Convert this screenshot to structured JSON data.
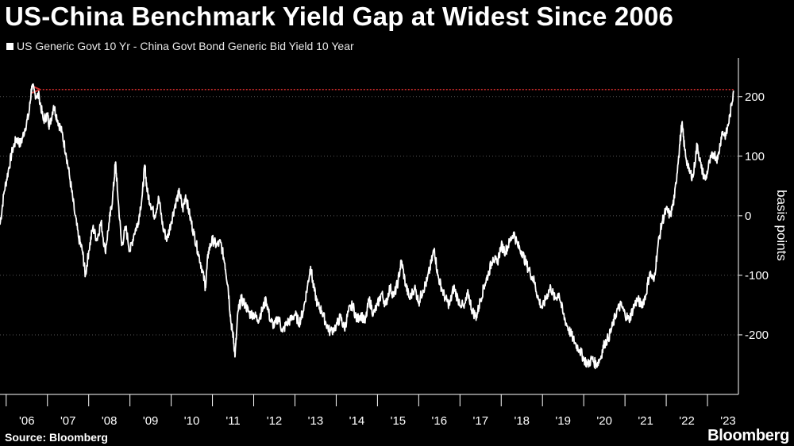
{
  "title": "US-China Benchmark Yield Gap at Widest Since 2006",
  "source": "Source: Bloomberg",
  "brand": "Bloomberg",
  "colors": {
    "background": "#000000",
    "series": "#ffffff",
    "reference_arrow": "#cc2a2a",
    "grid": "#555555"
  },
  "chart_data": {
    "type": "line",
    "title": "US-China Benchmark Yield Gap at Widest Since 2006",
    "xlabel": "",
    "ylabel": "basis points",
    "x_range": [
      2005.85,
      2023.75
    ],
    "ylim": [
      -300,
      265
    ],
    "y_ticks": [
      200,
      100,
      0,
      -100,
      -200
    ],
    "y_tick_labels": [
      "200",
      "100",
      "0",
      "-100",
      "-200"
    ],
    "x_ticks": [
      2006.5,
      2007.5,
      2008.5,
      2009.5,
      2010.5,
      2011.5,
      2012.5,
      2013.5,
      2014.5,
      2015.5,
      2016.5,
      2017.5,
      2018.5,
      2019.5,
      2020.5,
      2021.5,
      2022.5,
      2023.5
    ],
    "x_tick_labels": [
      "'06",
      "'07",
      "'08",
      "'09",
      "'10",
      "'11",
      "'12",
      "'13",
      "'14",
      "'15",
      "'16",
      "'17",
      "'18",
      "'19",
      "'20",
      "'21",
      "'22",
      "'23"
    ],
    "grid": "horizontal, dotted",
    "legend_position": "top-left",
    "series": [
      {
        "name": "US Generic Govt 10 Yr - China Govt Bond Generic Bid Yield 10 Year",
        "points": [
          [
            2005.85,
            -15
          ],
          [
            2005.95,
            40
          ],
          [
            2006.05,
            75
          ],
          [
            2006.15,
            110
          ],
          [
            2006.25,
            130
          ],
          [
            2006.35,
            120
          ],
          [
            2006.45,
            145
          ],
          [
            2006.55,
            170
          ],
          [
            2006.62,
            218
          ],
          [
            2006.7,
            205
          ],
          [
            2006.8,
            200
          ],
          [
            2006.9,
            160
          ],
          [
            2007.0,
            170
          ],
          [
            2007.05,
            150
          ],
          [
            2007.15,
            185
          ],
          [
            2007.25,
            160
          ],
          [
            2007.35,
            140
          ],
          [
            2007.45,
            105
          ],
          [
            2007.55,
            60
          ],
          [
            2007.65,
            10
          ],
          [
            2007.75,
            -35
          ],
          [
            2007.85,
            -60
          ],
          [
            2007.92,
            -100
          ],
          [
            2008.0,
            -60
          ],
          [
            2008.1,
            -20
          ],
          [
            2008.2,
            -40
          ],
          [
            2008.3,
            -10
          ],
          [
            2008.4,
            -60
          ],
          [
            2008.5,
            -10
          ],
          [
            2008.58,
            30
          ],
          [
            2008.65,
            90
          ],
          [
            2008.7,
            40
          ],
          [
            2008.8,
            -50
          ],
          [
            2008.9,
            -20
          ],
          [
            2009.0,
            -60
          ],
          [
            2009.1,
            -30
          ],
          [
            2009.2,
            -10
          ],
          [
            2009.3,
            35
          ],
          [
            2009.36,
            85
          ],
          [
            2009.42,
            40
          ],
          [
            2009.5,
            20
          ],
          [
            2009.6,
            0
          ],
          [
            2009.7,
            30
          ],
          [
            2009.8,
            -20
          ],
          [
            2009.9,
            -40
          ],
          [
            2010.0,
            -10
          ],
          [
            2010.1,
            20
          ],
          [
            2010.2,
            40
          ],
          [
            2010.28,
            10
          ],
          [
            2010.35,
            35
          ],
          [
            2010.45,
            0
          ],
          [
            2010.55,
            -30
          ],
          [
            2010.65,
            -60
          ],
          [
            2010.75,
            -90
          ],
          [
            2010.83,
            -120
          ],
          [
            2010.9,
            -60
          ],
          [
            2011.0,
            -40
          ],
          [
            2011.1,
            -50
          ],
          [
            2011.2,
            -45
          ],
          [
            2011.3,
            -80
          ],
          [
            2011.38,
            -120
          ],
          [
            2011.45,
            -180
          ],
          [
            2011.5,
            -200
          ],
          [
            2011.55,
            -235
          ],
          [
            2011.62,
            -160
          ],
          [
            2011.7,
            -140
          ],
          [
            2011.8,
            -150
          ],
          [
            2011.9,
            -165
          ],
          [
            2012.0,
            -165
          ],
          [
            2012.1,
            -175
          ],
          [
            2012.2,
            -160
          ],
          [
            2012.3,
            -140
          ],
          [
            2012.4,
            -175
          ],
          [
            2012.5,
            -185
          ],
          [
            2012.6,
            -170
          ],
          [
            2012.7,
            -195
          ],
          [
            2012.8,
            -180
          ],
          [
            2012.9,
            -175
          ],
          [
            2013.0,
            -165
          ],
          [
            2013.1,
            -180
          ],
          [
            2013.2,
            -160
          ],
          [
            2013.3,
            -120
          ],
          [
            2013.38,
            -85
          ],
          [
            2013.45,
            -120
          ],
          [
            2013.55,
            -150
          ],
          [
            2013.65,
            -160
          ],
          [
            2013.75,
            -180
          ],
          [
            2013.85,
            -195
          ],
          [
            2014.0,
            -185
          ],
          [
            2014.1,
            -170
          ],
          [
            2014.2,
            -190
          ],
          [
            2014.3,
            -160
          ],
          [
            2014.4,
            -150
          ],
          [
            2014.5,
            -175
          ],
          [
            2014.6,
            -165
          ],
          [
            2014.7,
            -180
          ],
          [
            2014.8,
            -140
          ],
          [
            2014.9,
            -165
          ],
          [
            2015.0,
            -150
          ],
          [
            2015.1,
            -130
          ],
          [
            2015.2,
            -150
          ],
          [
            2015.3,
            -120
          ],
          [
            2015.4,
            -135
          ],
          [
            2015.5,
            -110
          ],
          [
            2015.58,
            -75
          ],
          [
            2015.68,
            -115
          ],
          [
            2015.78,
            -140
          ],
          [
            2015.9,
            -120
          ],
          [
            2016.0,
            -145
          ],
          [
            2016.1,
            -125
          ],
          [
            2016.2,
            -110
          ],
          [
            2016.3,
            -80
          ],
          [
            2016.38,
            -55
          ],
          [
            2016.46,
            -100
          ],
          [
            2016.55,
            -120
          ],
          [
            2016.65,
            -140
          ],
          [
            2016.75,
            -150
          ],
          [
            2016.85,
            -120
          ],
          [
            2016.95,
            -140
          ],
          [
            2017.1,
            -155
          ],
          [
            2017.2,
            -130
          ],
          [
            2017.3,
            -160
          ],
          [
            2017.4,
            -170
          ],
          [
            2017.5,
            -140
          ],
          [
            2017.6,
            -115
          ],
          [
            2017.7,
            -95
          ],
          [
            2017.8,
            -70
          ],
          [
            2017.9,
            -80
          ],
          [
            2018.0,
            -50
          ],
          [
            2018.1,
            -60
          ],
          [
            2018.2,
            -45
          ],
          [
            2018.3,
            -28
          ],
          [
            2018.4,
            -50
          ],
          [
            2018.5,
            -60
          ],
          [
            2018.6,
            -80
          ],
          [
            2018.7,
            -95
          ],
          [
            2018.8,
            -110
          ],
          [
            2018.9,
            -140
          ],
          [
            2019.0,
            -155
          ],
          [
            2019.1,
            -135
          ],
          [
            2019.2,
            -120
          ],
          [
            2019.3,
            -140
          ],
          [
            2019.4,
            -130
          ],
          [
            2019.5,
            -165
          ],
          [
            2019.6,
            -185
          ],
          [
            2019.7,
            -200
          ],
          [
            2019.8,
            -215
          ],
          [
            2019.9,
            -225
          ],
          [
            2020.0,
            -240
          ],
          [
            2020.1,
            -250
          ],
          [
            2020.2,
            -240
          ],
          [
            2020.3,
            -250
          ],
          [
            2020.4,
            -240
          ],
          [
            2020.5,
            -215
          ],
          [
            2020.6,
            -205
          ],
          [
            2020.7,
            -185
          ],
          [
            2020.8,
            -160
          ],
          [
            2020.9,
            -150
          ],
          [
            2021.0,
            -165
          ],
          [
            2021.1,
            -175
          ],
          [
            2021.2,
            -155
          ],
          [
            2021.3,
            -140
          ],
          [
            2021.4,
            -150
          ],
          [
            2021.5,
            -135
          ],
          [
            2021.6,
            -95
          ],
          [
            2021.7,
            -110
          ],
          [
            2021.8,
            -50
          ],
          [
            2021.9,
            -10
          ],
          [
            2022.0,
            10
          ],
          [
            2022.1,
            0
          ],
          [
            2022.2,
            30
          ],
          [
            2022.3,
            100
          ],
          [
            2022.38,
            155
          ],
          [
            2022.45,
            110
          ],
          [
            2022.55,
            75
          ],
          [
            2022.65,
            65
          ],
          [
            2022.75,
            120
          ],
          [
            2022.85,
            80
          ],
          [
            2022.95,
            60
          ],
          [
            2023.05,
            90
          ],
          [
            2023.15,
            105
          ],
          [
            2023.25,
            95
          ],
          [
            2023.35,
            140
          ],
          [
            2023.45,
            135
          ],
          [
            2023.55,
            170
          ],
          [
            2023.63,
            210
          ]
        ]
      }
    ],
    "reference_line": {
      "value": 212,
      "x_start": 2006.72,
      "x_end": 2023.63,
      "style": "dotted arrow pointing left"
    }
  }
}
